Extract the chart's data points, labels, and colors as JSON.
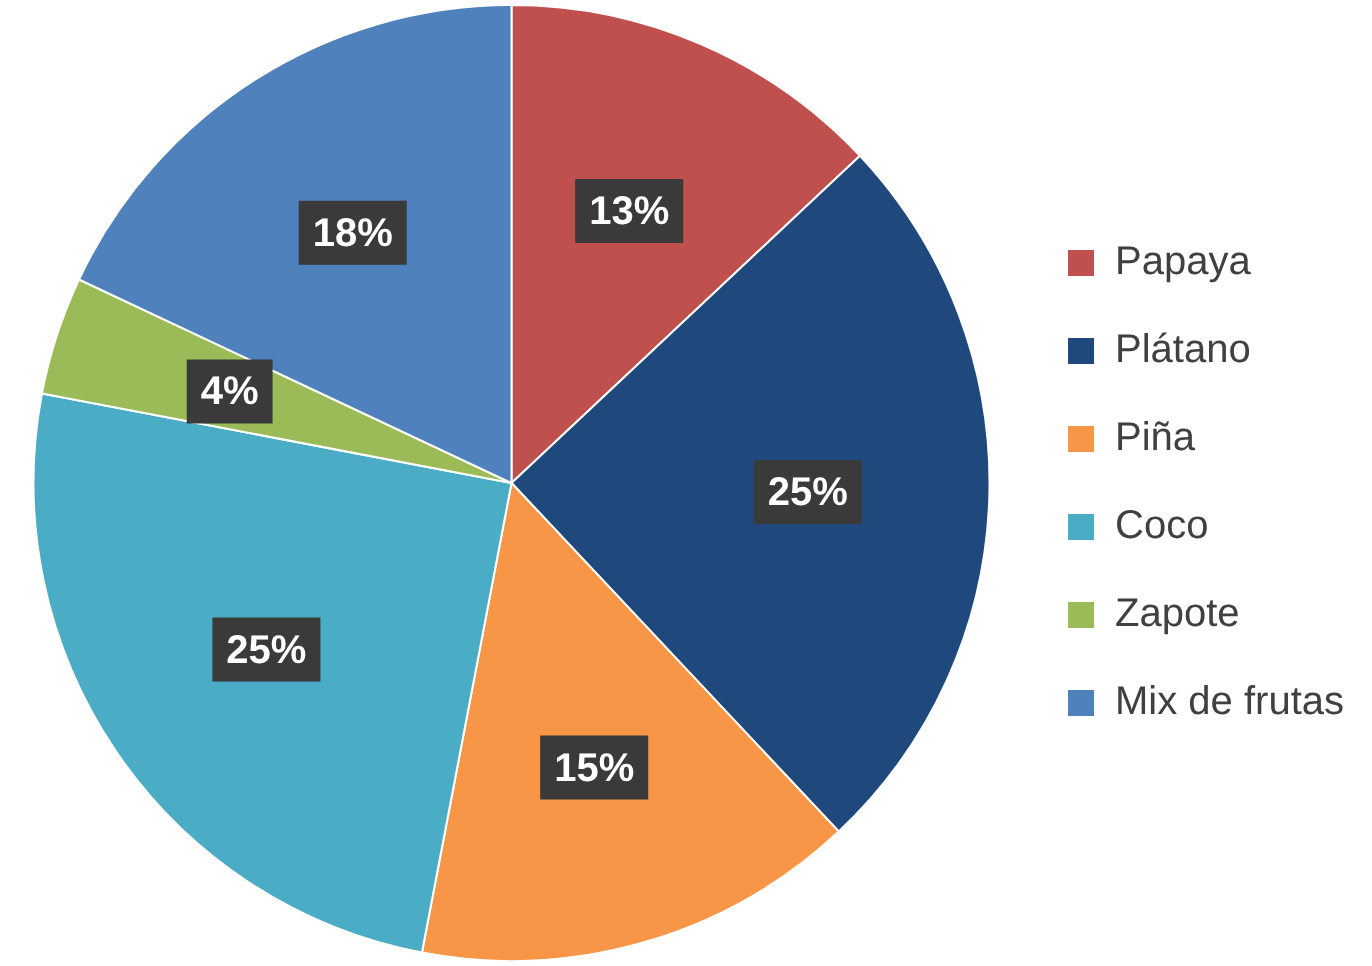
{
  "chart_data": {
    "type": "pie",
    "categories": [
      "Papaya",
      "Plátano",
      "Piña",
      "Coco",
      "Zapote",
      "Mix de frutas"
    ],
    "values": [
      13,
      25,
      15,
      25,
      4,
      18
    ],
    "colors": [
      "#c0504d",
      "#1f497d",
      "#f79646",
      "#4bacc6",
      "#9bbb59",
      "#4f81bd"
    ],
    "value_labels": [
      "13%",
      "25%",
      "15%",
      "25%",
      "4%",
      "18%"
    ],
    "legend": "right"
  }
}
